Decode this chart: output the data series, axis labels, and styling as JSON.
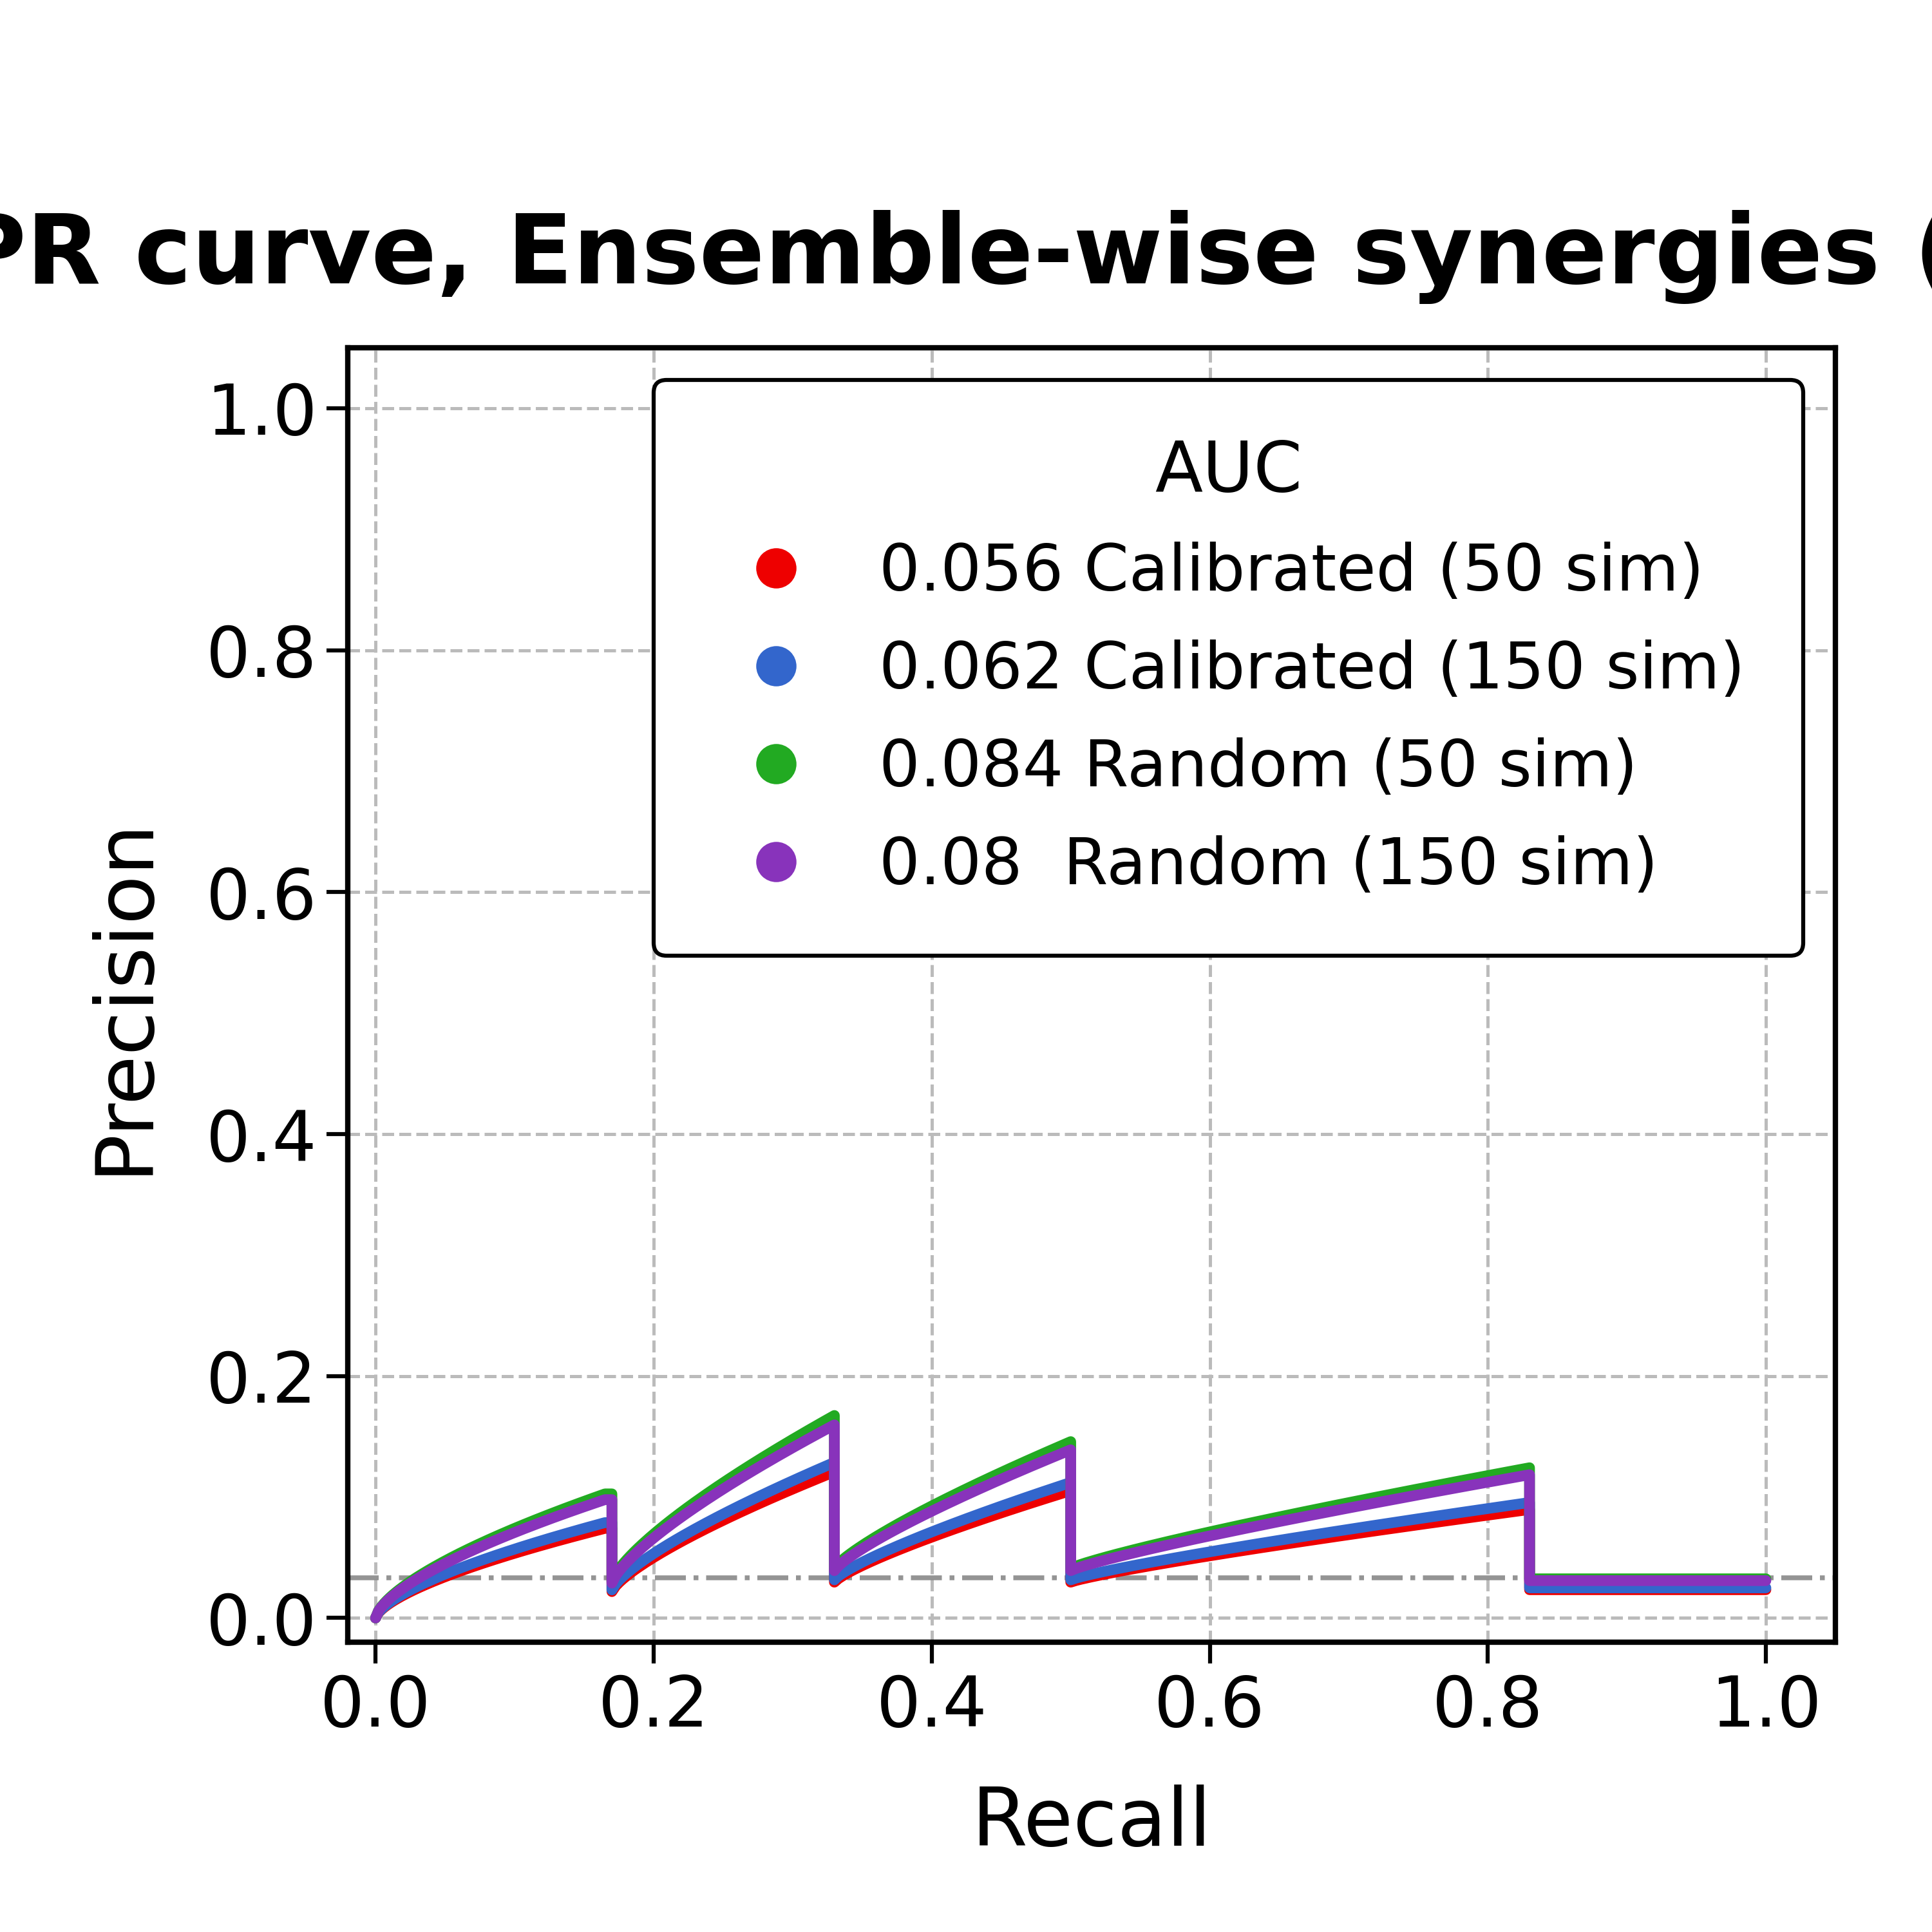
{
  "title": "PR curve, Ensemble-wise synergies (HSA)",
  "xlabel": "Recall",
  "ylabel": "Precision",
  "xlim": [
    -0.02,
    1.05
  ],
  "ylim": [
    -0.02,
    1.05
  ],
  "yticks": [
    0.0,
    0.2,
    0.4,
    0.6,
    0.8,
    1.0
  ],
  "xticks": [
    0.0,
    0.2,
    0.4,
    0.6,
    0.8,
    1.0
  ],
  "baseline_y": 0.033,
  "background_color": "#ffffff",
  "grid_color": "#bbbbbb",
  "lines": [
    {
      "label": "0.056 Calibrated (50 sim)",
      "color": "#EE0000",
      "scale": 0.78
    },
    {
      "label": "0.062 Calibrated (150 sim)",
      "color": "#3366CC",
      "scale": 0.83
    },
    {
      "label": "0.084 Random (50 sim)",
      "color": "#22AA22",
      "scale": 1.08
    },
    {
      "label": "0.08  Random (150 sim)",
      "color": "#8833BB",
      "scale": 1.03
    }
  ],
  "legend_title": "AUC",
  "title_fontsize": 36,
  "axis_label_fontsize": 30,
  "tick_fontsize": 26,
  "legend_fontsize": 24,
  "linewidth": 4.0
}
